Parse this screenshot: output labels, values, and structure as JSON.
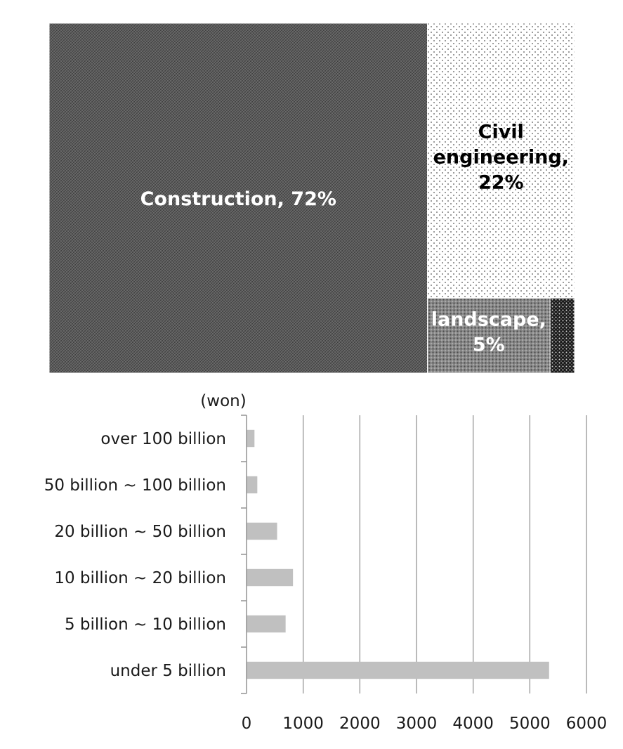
{
  "chart_data": [
    {
      "type": "treemap",
      "items": [
        {
          "name": "Construction",
          "pct_label": "72%",
          "value": 72,
          "label_lines": [
            "Construction, 72%"
          ],
          "color": "#5a5a5a",
          "pattern": "crosshatch",
          "label_color": "#ffffff"
        },
        {
          "name": "Civil engineering",
          "pct_label": "22%",
          "value": 22,
          "label_lines": [
            "Civil",
            "engineering,",
            "22%"
          ],
          "color": "#ffffff",
          "pattern": "sparse-dots",
          "label_color": "#000000"
        },
        {
          "name": "landscape",
          "pct_label": "5%",
          "value": 5,
          "label_lines": [
            "landscape,",
            "5%"
          ],
          "color": "#6e6e6e",
          "pattern": "dense-dots",
          "label_color": "#ffffff"
        },
        {
          "name": "",
          "value": 1,
          "label_lines": [],
          "color": "#1e1e1e",
          "pattern": "black-dots",
          "label_color": "#000000"
        }
      ]
    },
    {
      "type": "bar",
      "orientation": "horizontal",
      "unit_label": "(won)",
      "categories": [
        "over 100 billion",
        "50 billion ~ 100 billion",
        "20 billion ~ 50 billion",
        "10 billion ~ 20 billion",
        "5 billion ~ 10 billion",
        "under 5 billion"
      ],
      "values": [
        140,
        190,
        540,
        820,
        690,
        5340
      ],
      "xlim": [
        0,
        6000
      ],
      "xticks": [
        "0",
        "1000",
        "2000",
        "3000",
        "4000",
        "5000",
        "6000"
      ],
      "grid": "vertical",
      "bar_color": "#c0c0c0"
    }
  ]
}
